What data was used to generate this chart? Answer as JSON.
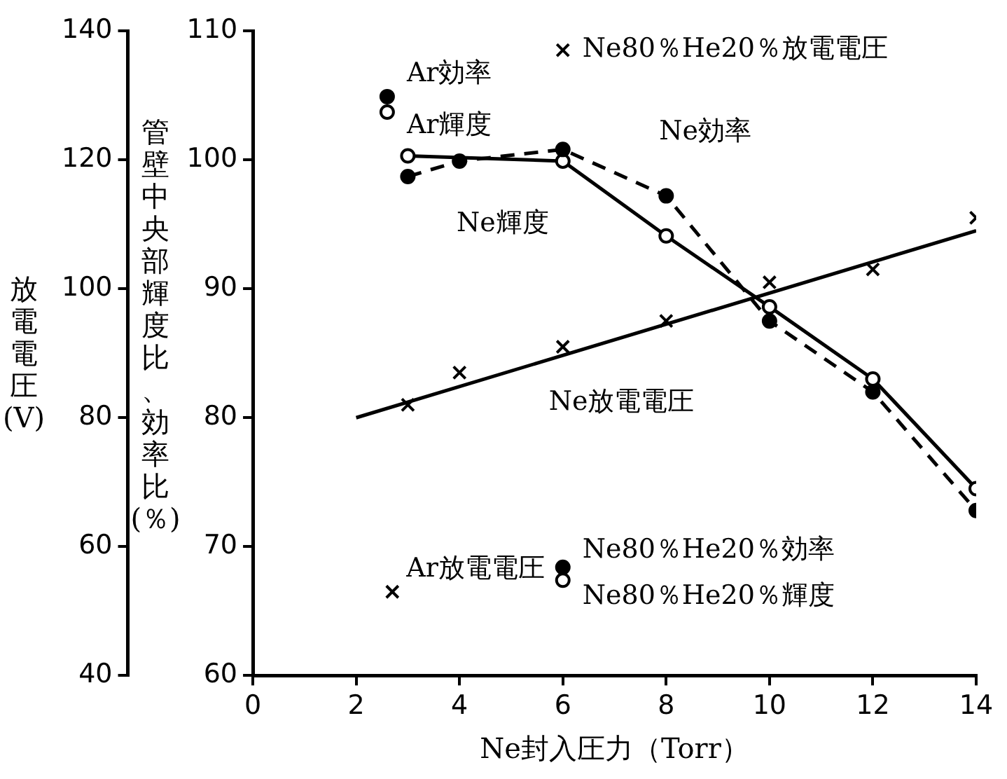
{
  "chart_data": {
    "type": "line",
    "xlabel": "Ne封入圧力（Torr）",
    "ylabel": "管壁中央部輝度比、効率比(％)",
    "y2label": "放電電圧(V)",
    "xlim": [
      0,
      14
    ],
    "xticks": [
      0,
      2,
      4,
      6,
      8,
      10,
      12,
      14
    ],
    "ylim": [
      60,
      110
    ],
    "yticks": [
      60,
      70,
      80,
      90,
      100,
      110
    ],
    "y2lim": [
      40,
      140
    ],
    "y2ticks": [
      40,
      60,
      80,
      100,
      120,
      140
    ],
    "grid": false,
    "legend": false,
    "series": [
      {
        "name": "Ne効率",
        "color": "#000000",
        "marker": "circle",
        "line_style": "dashed",
        "x": [
          3,
          4,
          6,
          8,
          10,
          12,
          14
        ],
        "values": [
          98.7,
          99.9,
          100.8,
          97.2,
          87.5,
          82.0,
          72.8
        ]
      },
      {
        "name": "Ne輝度",
        "color": "#000000",
        "marker": "circle",
        "line_style": "solid",
        "x": [
          3,
          6,
          8,
          10,
          12,
          14
        ],
        "values": [
          100.3,
          99.9,
          94.1,
          88.6,
          83.0,
          74.5
        ]
      },
      {
        "name": "Ne放電電圧",
        "type": "scatter",
        "color": "#000000",
        "marker": "cross",
        "axis": "y2",
        "x": [
          3,
          4,
          6,
          8,
          10,
          12,
          14
        ],
        "values": [
          82,
          87,
          91,
          95,
          101,
          103,
          111
        ]
      },
      {
        "color": "#000000",
        "marker": "none",
        "line_style": "solid",
        "axis": "y2",
        "x": [
          2,
          14
        ],
        "values": [
          80,
          109
        ]
      },
      {
        "name": "Ar効率",
        "type": "scatter",
        "color": "#000000",
        "marker": "circle",
        "x": [
          2.6
        ],
        "values": [
          104.9
        ]
      },
      {
        "name": "Ar輝度",
        "type": "scatter",
        "color": "#000000",
        "marker": "circle",
        "x": [
          2.6
        ],
        "values": [
          103.7
        ]
      },
      {
        "name": "Ar放電電圧",
        "type": "scatter",
        "color": "#000000",
        "marker": "cross",
        "axis": "y2",
        "x": [
          2.7
        ],
        "values": [
          53
        ]
      },
      {
        "name": "Ne80％He20％放電電圧",
        "type": "scatter",
        "color": "#000000",
        "marker": "cross",
        "axis": "y2",
        "x": [
          6
        ],
        "values": [
          137
        ]
      },
      {
        "name": "Ne80％He20％効率",
        "type": "scatter",
        "color": "#000000",
        "marker": "circle",
        "x": [
          6
        ],
        "values": [
          68.4
        ]
      },
      {
        "name": "Ne80％He20％輝度",
        "type": "scatter",
        "color": "#000000",
        "marker": "circle",
        "x": [
          6
        ],
        "values": [
          67.4
        ]
      }
    ]
  }
}
